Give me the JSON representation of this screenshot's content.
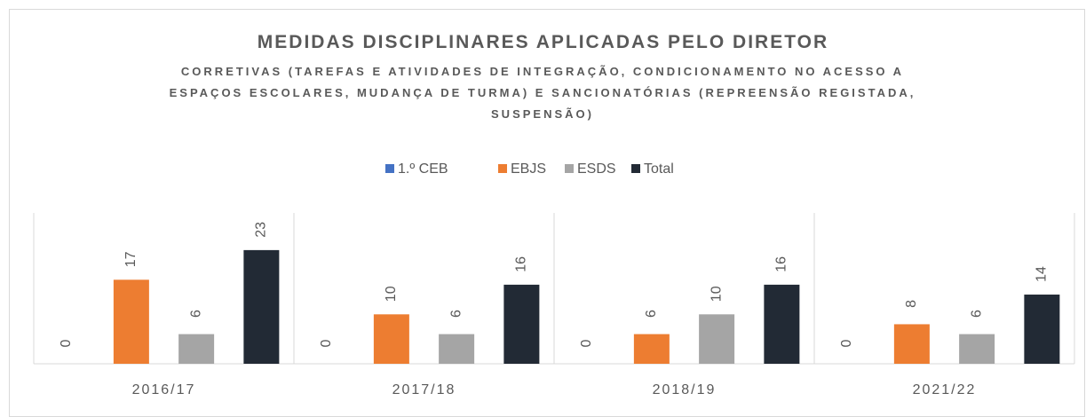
{
  "chart_data": {
    "type": "bar",
    "title": "MEDIDAS DISCIPLINARES APLICADAS PELO DIRETOR",
    "subtitle": "CORRETIVAS (TAREFAS E ATIVIDADES DE INTEGRAÇÃO, CONDICIONAMENTO NO ACESSO A ESPAÇOS ESCOLARES, MUDANÇA DE TURMA) E SANCIONATÓRIAS (REPREENSÃO REGISTADA, SUSPENSÃO)",
    "categories": [
      "2016/17",
      "2017/18",
      "2018/19",
      "2021/22"
    ],
    "series": [
      {
        "name": "1.º CEB",
        "color": "#4472c4",
        "values": [
          0,
          0,
          0,
          0
        ]
      },
      {
        "name": "EBJS",
        "color": "#ed7d31",
        "values": [
          17,
          10,
          6,
          8
        ]
      },
      {
        "name": "ESDS",
        "color": "#a5a5a5",
        "values": [
          6,
          6,
          10,
          6
        ]
      },
      {
        "name": "Total",
        "color": "#222a35",
        "values": [
          23,
          16,
          16,
          14
        ]
      }
    ],
    "legend": "top"
  }
}
